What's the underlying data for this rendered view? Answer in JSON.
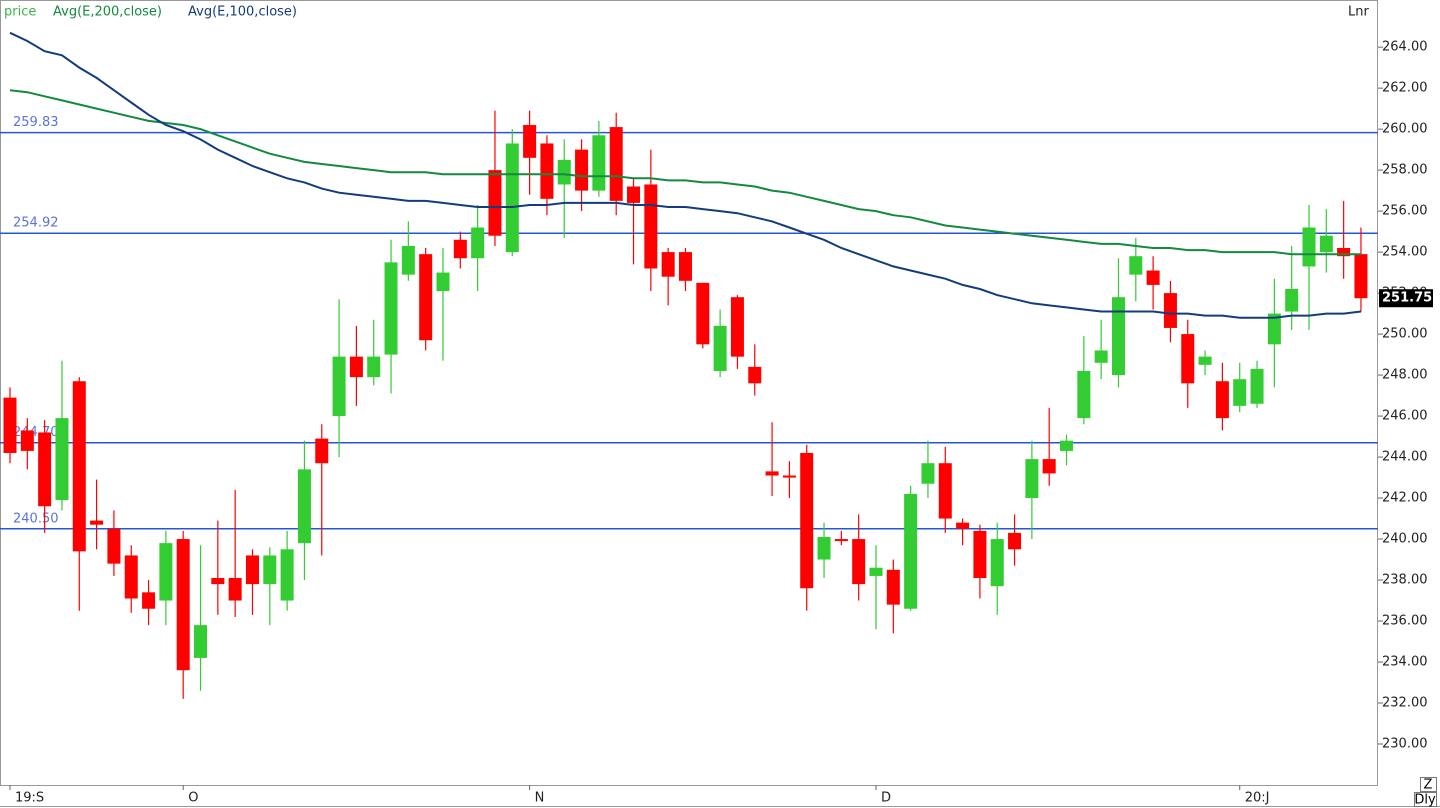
{
  "chart_data": {
    "type": "candlestick",
    "price_label": "price",
    "price_color": "#3cb44b",
    "scale_label": "Lnr",
    "zoom_label": "Z",
    "period_label": "Dly",
    "up_color": "#33cc33",
    "down_color": "#ff0000",
    "level_color": "#2457d6",
    "level_label_color": "#5b73d8",
    "categories": [
      "19:S",
      null,
      null,
      null,
      null,
      null,
      null,
      null,
      null,
      null,
      "O",
      null,
      null,
      null,
      null,
      null,
      null,
      null,
      null,
      null,
      null,
      null,
      null,
      null,
      null,
      null,
      null,
      null,
      null,
      null,
      "N",
      null,
      null,
      null,
      null,
      null,
      null,
      null,
      null,
      null,
      null,
      null,
      null,
      null,
      null,
      null,
      null,
      null,
      null,
      null,
      "D",
      null,
      null,
      null,
      null,
      null,
      null,
      null,
      null,
      null,
      null,
      null,
      null,
      null,
      null,
      null,
      null,
      null,
      null,
      null,
      null,
      "20:J",
      null,
      null,
      null,
      null,
      null,
      null,
      null
    ],
    "open": [
      246.9,
      245.3,
      245.2,
      241.9,
      247.7,
      240.9,
      240.5,
      239.2,
      237.4,
      237.0,
      240.0,
      234.2,
      238.1,
      238.1,
      239.2,
      237.8,
      237.0,
      239.8,
      244.9,
      246.0,
      248.9,
      247.9,
      249.0,
      252.9,
      253.9,
      252.1,
      254.6,
      253.7,
      258.0,
      254.0,
      260.2,
      259.3,
      257.3,
      259.0,
      257.0,
      260.1,
      257.2,
      257.3,
      254.0,
      254.0,
      252.5,
      248.2,
      251.8,
      248.4,
      243.3,
      243.1,
      244.2,
      239.0,
      240.0,
      240.0,
      238.2,
      238.5,
      236.6,
      242.7,
      243.7,
      240.8,
      240.4,
      237.7,
      240.3,
      242.0,
      243.9,
      244.3,
      245.9,
      248.6,
      248.0,
      252.9,
      253.1,
      252.0,
      250.0,
      248.5,
      247.7,
      246.5,
      246.6,
      249.5,
      251.1,
      253.3,
      254.0,
      254.2,
      253.9
    ],
    "high": [
      247.4,
      245.9,
      245.8,
      248.7,
      247.9,
      242.9,
      241.4,
      239.7,
      238.0,
      240.4,
      240.4,
      239.7,
      240.9,
      242.4,
      239.5,
      239.6,
      240.4,
      244.8,
      245.6,
      251.7,
      250.4,
      250.7,
      254.6,
      255.5,
      254.2,
      254.2,
      255.0,
      256.3,
      260.9,
      260.0,
      260.9,
      259.7,
      259.5,
      259.5,
      260.4,
      260.8,
      257.6,
      259.0,
      254.2,
      254.2,
      252.5,
      251.2,
      251.9,
      249.5,
      245.7,
      243.8,
      244.6,
      240.8,
      240.4,
      241.2,
      239.7,
      239.0,
      242.6,
      244.8,
      244.5,
      241.0,
      240.7,
      240.8,
      241.2,
      244.8,
      246.4,
      245.1,
      249.9,
      250.7,
      253.7,
      254.7,
      253.8,
      252.6,
      250.7,
      249.2,
      248.6,
      248.6,
      248.7,
      252.7,
      254.3,
      256.3,
      256.1,
      256.5,
      255.2
    ],
    "low": [
      243.7,
      243.4,
      240.3,
      241.4,
      236.5,
      239.5,
      238.2,
      236.4,
      235.8,
      235.8,
      232.2,
      232.6,
      236.3,
      236.2,
      236.3,
      235.8,
      236.5,
      238.0,
      239.2,
      244.0,
      246.5,
      247.5,
      247.1,
      252.6,
      249.2,
      248.7,
      253.2,
      252.1,
      254.3,
      253.8,
      256.8,
      255.8,
      254.7,
      256.0,
      256.7,
      255.8,
      253.4,
      252.1,
      251.4,
      252.1,
      249.3,
      247.9,
      248.3,
      247.0,
      242.1,
      242.0,
      236.5,
      238.1,
      239.7,
      237.0,
      235.6,
      235.4,
      236.5,
      242.0,
      240.3,
      239.7,
      237.1,
      236.3,
      238.7,
      240.0,
      242.6,
      243.6,
      245.6,
      247.8,
      247.4,
      251.6,
      251.2,
      249.6,
      246.4,
      248.0,
      245.3,
      246.2,
      246.4,
      247.4,
      250.2,
      250.2,
      253.0,
      252.7,
      251.1
    ],
    "close": [
      244.2,
      244.3,
      241.6,
      245.9,
      239.4,
      240.7,
      238.8,
      237.1,
      236.6,
      239.8,
      233.6,
      235.8,
      237.8,
      237.0,
      237.8,
      239.2,
      239.5,
      243.4,
      243.7,
      248.9,
      247.9,
      248.9,
      253.5,
      254.3,
      249.7,
      253.0,
      253.7,
      255.2,
      254.8,
      259.3,
      258.6,
      256.6,
      258.5,
      257.0,
      259.7,
      256.5,
      256.4,
      253.2,
      252.8,
      252.6,
      249.5,
      250.4,
      248.9,
      247.6,
      243.1,
      243.0,
      237.6,
      240.1,
      239.9,
      237.8,
      238.6,
      236.8,
      242.2,
      243.7,
      241.0,
      240.5,
      238.1,
      240.0,
      239.5,
      243.9,
      243.2,
      244.8,
      248.2,
      249.2,
      251.8,
      253.8,
      252.4,
      250.3,
      247.6,
      248.9,
      245.9,
      247.8,
      248.3,
      251.0,
      252.2,
      255.2,
      254.8,
      253.8,
      251.75
    ],
    "series": [
      {
        "name": "Avg(E,200,close)",
        "color": "#138a3f",
        "values": [
          261.9,
          261.8,
          261.6,
          261.4,
          261.2,
          261.0,
          260.8,
          260.6,
          260.4,
          260.3,
          260.2,
          260.0,
          259.7,
          259.4,
          259.1,
          258.8,
          258.6,
          258.4,
          258.3,
          258.2,
          258.1,
          258.0,
          257.9,
          257.9,
          257.9,
          257.8,
          257.8,
          257.8,
          257.8,
          257.8,
          257.8,
          257.8,
          257.8,
          257.7,
          257.7,
          257.7,
          257.6,
          257.6,
          257.5,
          257.5,
          257.4,
          257.4,
          257.3,
          257.2,
          257.0,
          256.9,
          256.7,
          256.5,
          256.3,
          256.1,
          256.0,
          255.8,
          255.7,
          255.5,
          255.3,
          255.2,
          255.1,
          255.0,
          254.9,
          254.8,
          254.7,
          254.6,
          254.5,
          254.4,
          254.4,
          254.3,
          254.2,
          254.2,
          254.1,
          254.1,
          254.0,
          254.0,
          254.0,
          254.0,
          253.9,
          253.9,
          253.9,
          253.9,
          253.9
        ]
      },
      {
        "name": "Avg(E,100,close)",
        "color": "#143c7c",
        "values": [
          264.7,
          264.3,
          263.8,
          263.6,
          263.0,
          262.5,
          261.9,
          261.3,
          260.7,
          260.2,
          259.9,
          259.5,
          259.0,
          258.6,
          258.2,
          257.9,
          257.6,
          257.4,
          257.1,
          256.9,
          256.8,
          256.7,
          256.6,
          256.5,
          256.5,
          256.4,
          256.3,
          256.2,
          256.2,
          256.2,
          256.3,
          256.3,
          256.4,
          256.4,
          256.4,
          256.4,
          256.3,
          256.3,
          256.2,
          256.2,
          256.1,
          256.0,
          255.9,
          255.7,
          255.5,
          255.2,
          254.9,
          254.6,
          254.2,
          253.9,
          253.6,
          253.3,
          253.1,
          252.9,
          252.7,
          252.4,
          252.2,
          251.9,
          251.7,
          251.5,
          251.4,
          251.3,
          251.2,
          251.1,
          251.1,
          251.1,
          251.1,
          251.0,
          251.0,
          250.9,
          250.9,
          250.8,
          250.8,
          250.8,
          250.9,
          250.9,
          251.0,
          251.0,
          251.1
        ]
      }
    ],
    "levels": [
      {
        "value": 259.83,
        "label": "259.83"
      },
      {
        "value": 254.92,
        "label": "254.92"
      },
      {
        "value": 244.7,
        "label": "244.70"
      },
      {
        "value": 240.5,
        "label": "240.50"
      }
    ],
    "ylim": [
      228,
      266.3
    ],
    "yticks": [
      {
        "value": 230,
        "label": "230.00"
      },
      {
        "value": 232,
        "label": "232.00"
      },
      {
        "value": 234,
        "label": "234.00"
      },
      {
        "value": 236,
        "label": "236.00"
      },
      {
        "value": 238,
        "label": "238.00"
      },
      {
        "value": 240,
        "label": "240.00"
      },
      {
        "value": 242,
        "label": "242.00"
      },
      {
        "value": 244,
        "label": "244.00"
      },
      {
        "value": 246,
        "label": "246.00"
      },
      {
        "value": 248,
        "label": "248.00"
      },
      {
        "value": 250,
        "label": "250.00"
      },
      {
        "value": 252,
        "label": "252.00"
      },
      {
        "value": 254,
        "label": "254.00"
      },
      {
        "value": 256,
        "label": "256.00"
      },
      {
        "value": 258,
        "label": "258.00"
      },
      {
        "value": 260,
        "label": "260.00"
      },
      {
        "value": 262,
        "label": "262.00"
      },
      {
        "value": 264,
        "label": "264.00"
      }
    ]
  }
}
